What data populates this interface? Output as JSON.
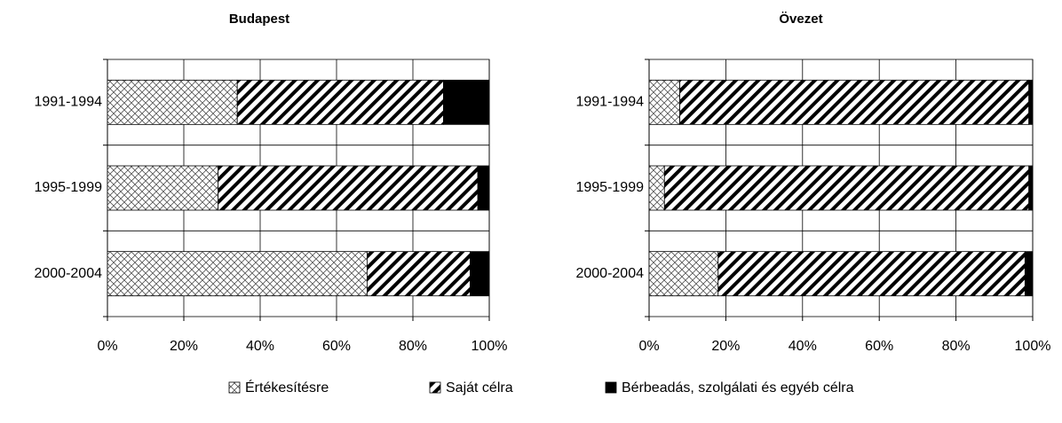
{
  "chart_data": [
    {
      "type": "stacked-bar-horizontal",
      "title": "Budapest",
      "categories": [
        "1991-1994",
        "1995-1999",
        "2000-2004"
      ],
      "series": [
        {
          "name": "Értékesítésre",
          "color": "#000000",
          "pattern": "crosshatch",
          "values": [
            34,
            29,
            68
          ]
        },
        {
          "name": "Saját célra",
          "color": "#000000",
          "pattern": "diagonal",
          "values": [
            54,
            68,
            27
          ]
        },
        {
          "name": "Bérbeadás, szolgálati és egyéb célra",
          "color": "#000000",
          "pattern": "solid",
          "values": [
            12,
            3,
            5
          ]
        }
      ],
      "xlim": [
        0,
        100
      ],
      "xticks": [
        {
          "value": 0,
          "label": "0%"
        },
        {
          "value": 20,
          "label": "20%"
        },
        {
          "value": 40,
          "label": "40%"
        },
        {
          "value": 60,
          "label": "60%"
        },
        {
          "value": 80,
          "label": "80%"
        },
        {
          "value": 100,
          "label": "100%"
        }
      ],
      "grid": true
    },
    {
      "type": "stacked-bar-horizontal",
      "title": "Övezet",
      "categories": [
        "1991-1994",
        "1995-1999",
        "2000-2004"
      ],
      "series": [
        {
          "name": "Értékesítésre",
          "color": "#000000",
          "pattern": "crosshatch",
          "values": [
            8,
            4,
            18
          ]
        },
        {
          "name": "Saját célra",
          "color": "#000000",
          "pattern": "diagonal",
          "values": [
            91,
            95,
            80
          ]
        },
        {
          "name": "Bérbeadás, szolgálati és egyéb célra",
          "color": "#000000",
          "pattern": "solid",
          "values": [
            1,
            1,
            2
          ]
        }
      ],
      "xlim": [
        0,
        100
      ],
      "xticks": [
        {
          "value": 0,
          "label": "0%"
        },
        {
          "value": 20,
          "label": "20%"
        },
        {
          "value": 40,
          "label": "40%"
        },
        {
          "value": 60,
          "label": "60%"
        },
        {
          "value": 80,
          "label": "80%"
        },
        {
          "value": 100,
          "label": "100%"
        }
      ],
      "grid": true
    }
  ]
}
